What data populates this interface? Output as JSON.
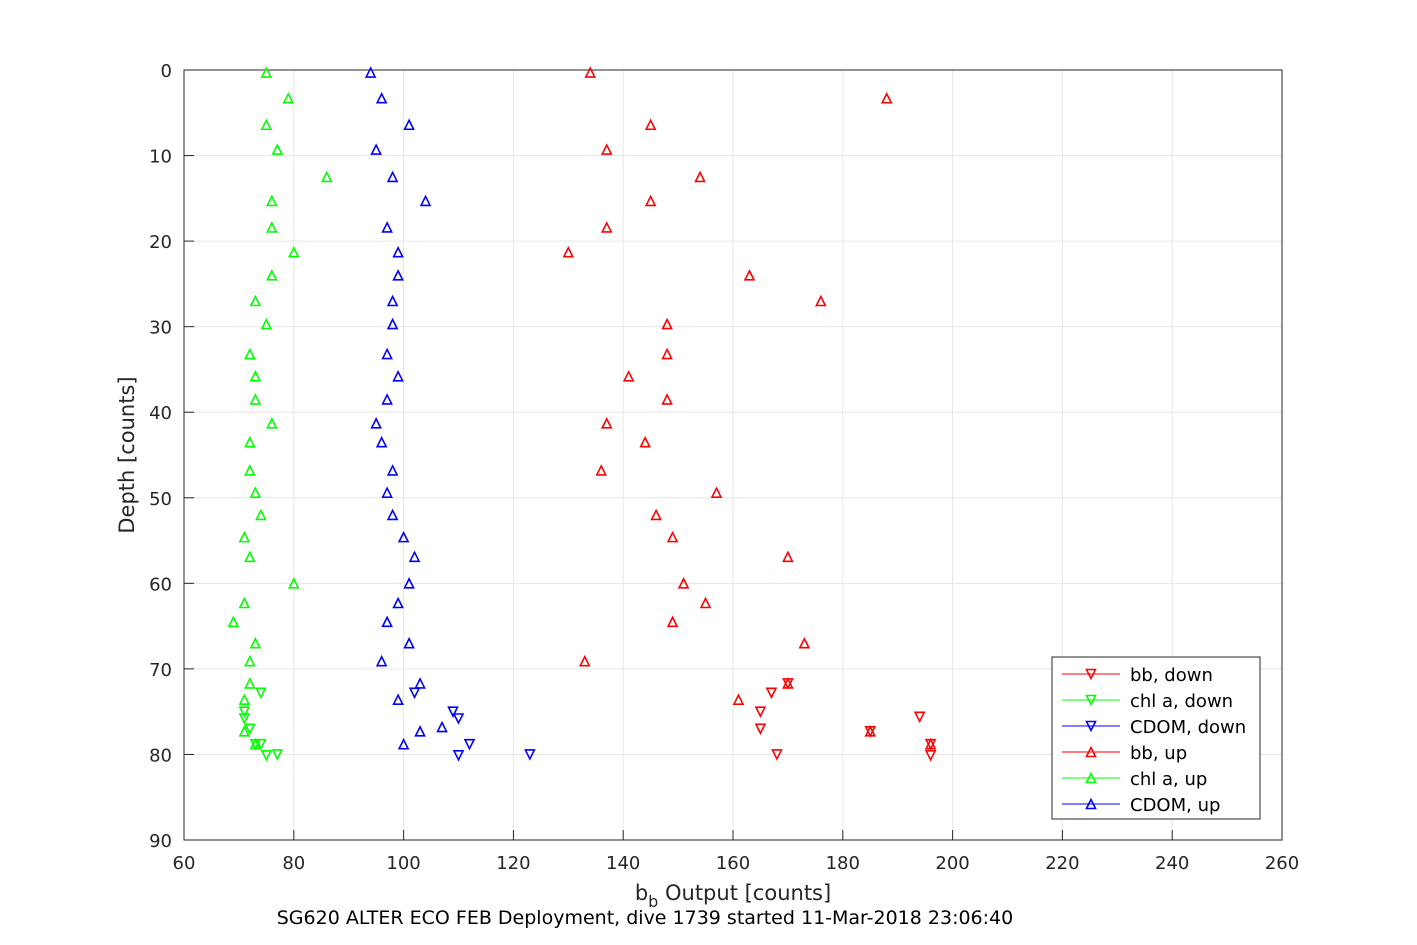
{
  "chart_data": {
    "type": "scatter",
    "xlabel_main": "b",
    "xlabel_sub": "b",
    "xlabel_rest": " Output [counts]",
    "ylabel": "Depth [counts]",
    "caption": "SG620 ALTER ECO FEB Deployment, dive 1739 started 11-Mar-2018 23:06:40",
    "xlim": [
      60,
      260
    ],
    "ylim": [
      0,
      90
    ],
    "y_reversed": true,
    "grid": true,
    "legend_position": "bottom-right",
    "xticks": [
      60,
      80,
      100,
      120,
      140,
      160,
      180,
      200,
      220,
      240,
      260
    ],
    "yticks": [
      0,
      10,
      20,
      30,
      40,
      50,
      60,
      70,
      80,
      90
    ],
    "colors": {
      "red": "#ff0000",
      "green": "#00ff00",
      "blue": "#0000ff"
    },
    "series": [
      {
        "name": "bb, down",
        "color": "#ff0000",
        "marker": "triangle-down",
        "x": [
          167,
          165,
          165,
          168,
          196,
          196,
          185,
          194,
          170
        ],
        "y": [
          72.8,
          75.0,
          77.0,
          80.0,
          80.1,
          78.8,
          77.3,
          75.6,
          71.7
        ]
      },
      {
        "name": "chl a, down",
        "color": "#00ff00",
        "marker": "triangle-down",
        "x": [
          74,
          71,
          71,
          72,
          73,
          74,
          75,
          77
        ],
        "y": [
          72.8,
          75.0,
          75.8,
          77.0,
          78.8,
          78.8,
          80.1,
          80.0
        ]
      },
      {
        "name": "CDOM, down",
        "color": "#0000ff",
        "marker": "triangle-down",
        "x": [
          102,
          109,
          110,
          112,
          110,
          123
        ],
        "y": [
          72.8,
          75.0,
          75.8,
          78.8,
          80.1,
          80.0
        ]
      },
      {
        "name": "bb, up",
        "color": "#ff0000",
        "marker": "triangle-up",
        "x": [
          134,
          188,
          145,
          137,
          154,
          145,
          137,
          130,
          163,
          176,
          148,
          148,
          141,
          148,
          137,
          144,
          136,
          157,
          146,
          149,
          170,
          151,
          155,
          149,
          173,
          133,
          170,
          161,
          196,
          185
        ],
        "y": [
          0.3,
          3.3,
          6.4,
          9.3,
          12.5,
          15.3,
          18.4,
          21.3,
          24.0,
          27.0,
          29.7,
          33.2,
          35.8,
          38.5,
          41.3,
          43.5,
          46.8,
          49.4,
          52.0,
          54.6,
          56.9,
          60.0,
          62.3,
          64.5,
          67.0,
          69.1,
          71.7,
          73.6,
          78.8,
          77.3
        ]
      },
      {
        "name": "chl a, up",
        "color": "#00ff00",
        "marker": "triangle-up",
        "x": [
          75,
          79,
          75,
          77,
          86,
          76,
          76,
          80,
          76,
          73,
          75,
          72,
          73,
          73,
          76,
          72,
          72,
          73,
          74,
          71,
          72,
          80,
          71,
          69,
          73,
          72,
          72,
          71,
          71,
          73
        ],
        "y": [
          0.3,
          3.3,
          6.4,
          9.3,
          12.5,
          15.3,
          18.4,
          21.3,
          24.0,
          27.0,
          29.7,
          33.2,
          35.8,
          38.5,
          41.3,
          43.5,
          46.8,
          49.4,
          52.0,
          54.6,
          56.9,
          60.0,
          62.3,
          64.5,
          67.0,
          69.1,
          71.7,
          73.6,
          77.3,
          78.8
        ]
      },
      {
        "name": "CDOM, up",
        "color": "#0000ff",
        "marker": "triangle-up",
        "x": [
          94,
          96,
          101,
          95,
          98,
          104,
          97,
          99,
          99,
          98,
          98,
          97,
          99,
          97,
          95,
          96,
          98,
          97,
          98,
          100,
          102,
          101,
          99,
          97,
          101,
          96,
          103,
          99,
          103,
          107,
          100
        ],
        "y": [
          0.3,
          3.3,
          6.4,
          9.3,
          12.5,
          15.3,
          18.4,
          21.3,
          24.0,
          27.0,
          29.7,
          33.2,
          35.8,
          38.5,
          41.3,
          43.5,
          46.8,
          49.4,
          52.0,
          54.6,
          56.9,
          60.0,
          62.3,
          64.5,
          67.0,
          69.1,
          71.7,
          73.6,
          77.3,
          76.8,
          78.8
        ]
      }
    ]
  }
}
